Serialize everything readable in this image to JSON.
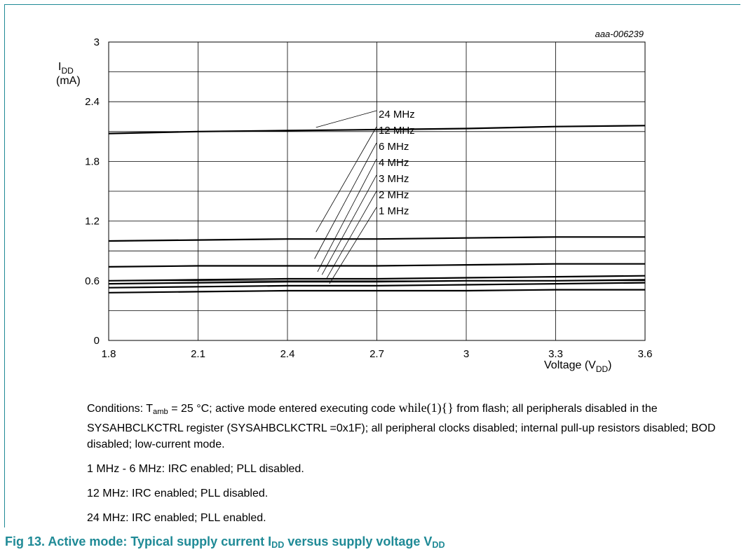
{
  "chart_data": {
    "type": "line",
    "code": "aaa-006239",
    "ylabel_main": "I",
    "ylabel_sub": "DD",
    "ylabel_unit": "(mA)",
    "xlabel_main": "Voltage (V",
    "xlabel_sub": "DD",
    "xlabel_end": ")",
    "xlim": [
      1.8,
      3.6
    ],
    "ylim": [
      0,
      3
    ],
    "x_ticks": [
      "1.8",
      "2.1",
      "2.4",
      "2.7",
      "3",
      "3.3",
      "3.6"
    ],
    "y_ticks": [
      "0",
      "0.6",
      "1.2",
      "1.8",
      "2.4",
      "3"
    ],
    "x": [
      1.8,
      2.1,
      2.4,
      2.7,
      3.0,
      3.3,
      3.6
    ],
    "series": [
      {
        "name": "24 MHz",
        "values": [
          2.08,
          2.1,
          2.11,
          2.12,
          2.13,
          2.15,
          2.16
        ]
      },
      {
        "name": "12 MHz",
        "values": [
          1.0,
          1.01,
          1.02,
          1.02,
          1.03,
          1.04,
          1.04
        ]
      },
      {
        "name": "6 MHz",
        "values": [
          0.74,
          0.75,
          0.75,
          0.75,
          0.76,
          0.77,
          0.77
        ]
      },
      {
        "name": "4 MHz",
        "values": [
          0.6,
          0.61,
          0.62,
          0.62,
          0.63,
          0.64,
          0.65
        ]
      },
      {
        "name": "3 MHz",
        "values": [
          0.57,
          0.58,
          0.59,
          0.59,
          0.6,
          0.6,
          0.61
        ]
      },
      {
        "name": "2 MHz",
        "values": [
          0.53,
          0.54,
          0.55,
          0.55,
          0.56,
          0.57,
          0.58
        ]
      },
      {
        "name": "1 MHz",
        "values": [
          0.48,
          0.49,
          0.5,
          0.5,
          0.5,
          0.51,
          0.51
        ]
      }
    ],
    "grid": true,
    "legend_placement": "center (leader lines)"
  },
  "notes": {
    "conditions_pre": "Conditions: T",
    "conditions_sub": "amb",
    "conditions_mid": " = 25 °C; active mode entered executing code ",
    "conditions_code": "while(1){}",
    "conditions_post": " from flash; all peripherals disabled in the SYSAHBCLKCTRL register (SYSAHBCLKCTRL =0x1F); all peripheral clocks disabled; internal pull-up resistors disabled; BOD disabled; low-current mode.",
    "line1": "1 MHz - 6 MHz: IRC enabled; PLL disabled.",
    "line2": "12 MHz: IRC enabled; PLL disabled.",
    "line3": "24 MHz: IRC enabled; PLL enabled."
  },
  "caption": {
    "pre": "Fig 13.   Active mode: Typical supply current I",
    "sub1": "DD",
    "mid": " versus supply voltage V",
    "sub2": "DD"
  },
  "colors": {
    "accent": "#1f8a96",
    "line": "#000000",
    "grid": "#000000"
  }
}
